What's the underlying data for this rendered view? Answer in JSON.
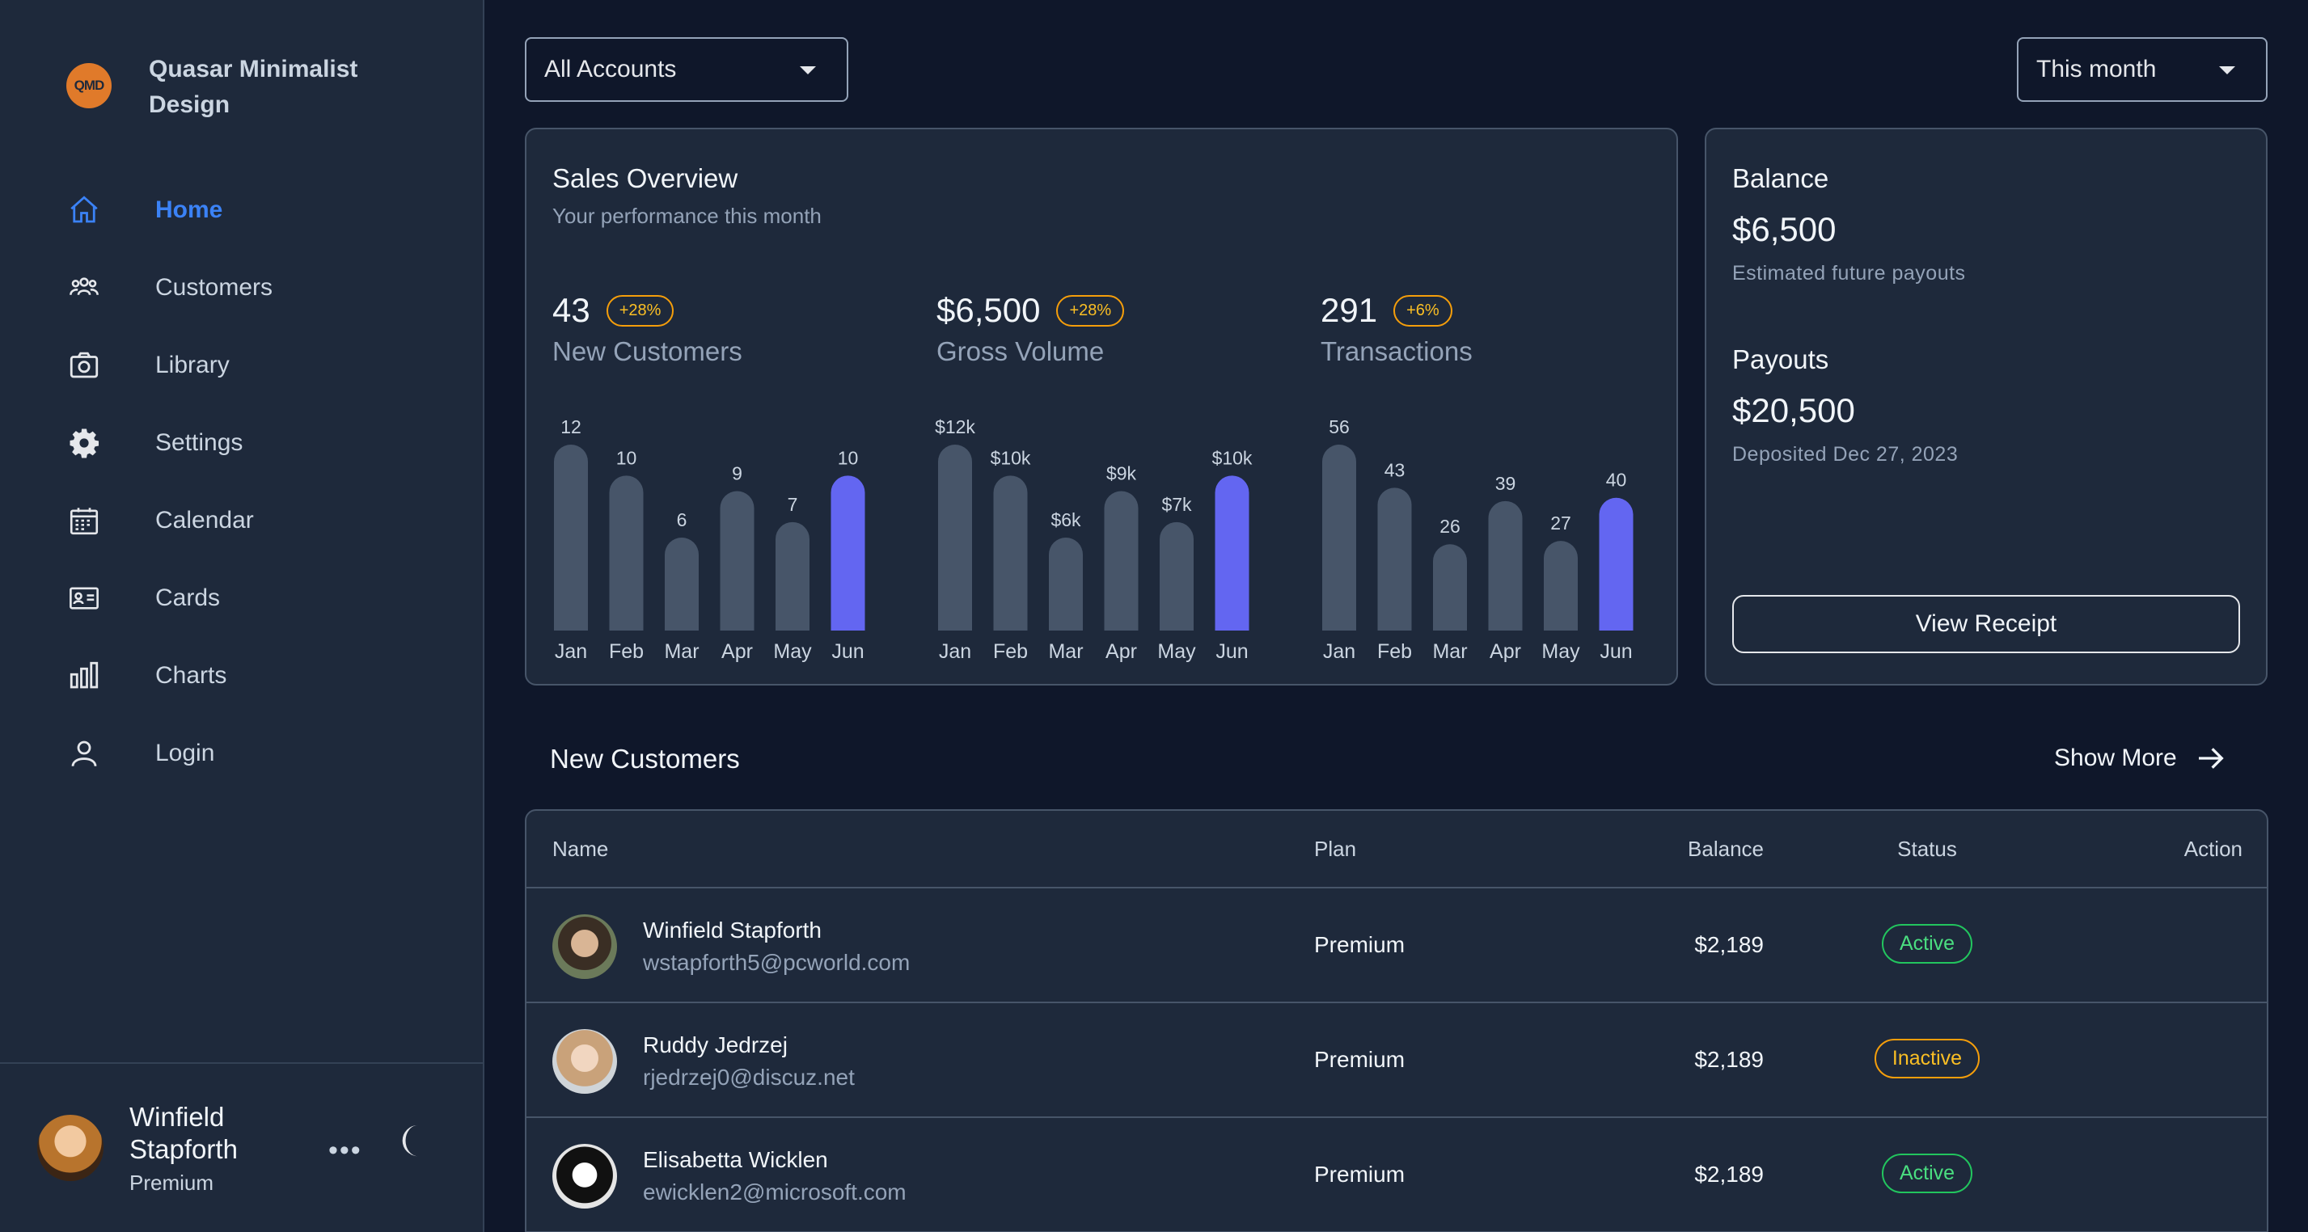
{
  "brand": {
    "logo": "QMD",
    "name": "Quasar Minimalist Design"
  },
  "nav": [
    {
      "label": "Home",
      "icon": "home-icon",
      "active": true
    },
    {
      "label": "Customers",
      "icon": "customers-icon"
    },
    {
      "label": "Library",
      "icon": "camera-icon"
    },
    {
      "label": "Settings",
      "icon": "gear-icon"
    },
    {
      "label": "Calendar",
      "icon": "calendar-icon"
    },
    {
      "label": "Cards",
      "icon": "id-card-icon"
    },
    {
      "label": "Charts",
      "icon": "bar-chart-icon"
    },
    {
      "label": "Login",
      "icon": "user-icon"
    }
  ],
  "user": {
    "name": "Winfield Stapforth",
    "plan": "Premium",
    "more": "•••"
  },
  "filters": {
    "account": "All Accounts",
    "period": "This month"
  },
  "sales": {
    "title": "Sales Overview",
    "subtitle": "Your performance this month",
    "stats": [
      {
        "value": "43",
        "badge": "+28%",
        "label": "New Customers"
      },
      {
        "value": "$6,500",
        "badge": "+28%",
        "label": "Gross Volume"
      },
      {
        "value": "291",
        "badge": "+6%",
        "label": "Transactions"
      }
    ]
  },
  "chart_data": [
    {
      "type": "bar",
      "title": "New Customers",
      "categories": [
        "Jan",
        "Feb",
        "Mar",
        "Apr",
        "May",
        "Jun"
      ],
      "values": [
        12,
        10,
        6,
        9,
        7,
        10
      ],
      "labels": [
        "12",
        "10",
        "6",
        "9",
        "7",
        "10"
      ],
      "highlight": "Jun"
    },
    {
      "type": "bar",
      "title": "Gross Volume",
      "categories": [
        "Jan",
        "Feb",
        "Mar",
        "Apr",
        "May",
        "Jun"
      ],
      "values": [
        12,
        10,
        6,
        9,
        7,
        10
      ],
      "labels": [
        "$12k",
        "$10k",
        "$6k",
        "$9k",
        "$7k",
        "$10k"
      ],
      "highlight": "Jun"
    },
    {
      "type": "bar",
      "title": "Transactions",
      "categories": [
        "Jan",
        "Feb",
        "Mar",
        "Apr",
        "May",
        "Jun"
      ],
      "values": [
        56,
        43,
        26,
        39,
        27,
        40
      ],
      "labels": [
        "56",
        "43",
        "26",
        "39",
        "27",
        "40"
      ],
      "highlight": "Jun"
    }
  ],
  "balance": {
    "label": "Balance",
    "value": "$6,500",
    "sub": "Estimated future payouts",
    "payouts_label": "Payouts",
    "payouts_value": "$20,500",
    "payouts_sub": "Deposited Dec 27, 2023",
    "button": "View Receipt"
  },
  "customers": {
    "title": "New Customers",
    "show_more": "Show More",
    "columns": {
      "name": "Name",
      "plan": "Plan",
      "balance": "Balance",
      "status": "Status",
      "action": "Action"
    },
    "rows": [
      {
        "name": "Winfield Stapforth",
        "email": "wstapforth5@pcworld.com",
        "plan": "Premium",
        "balance": "$2,189",
        "status": "Active"
      },
      {
        "name": "Ruddy Jedrzej",
        "email": "rjedrzej0@discuz.net",
        "plan": "Premium",
        "balance": "$2,189",
        "status": "Inactive"
      },
      {
        "name": "Elisabetta Wicklen",
        "email": "ewicklen2@microsoft.com",
        "plan": "Premium",
        "balance": "$2,189",
        "status": "Active"
      }
    ]
  },
  "colors": {
    "accent": "#6366f1",
    "bar": "#475569",
    "active_nav": "#3b82f6",
    "bg": "#0f172a",
    "card": "#1e293b"
  }
}
